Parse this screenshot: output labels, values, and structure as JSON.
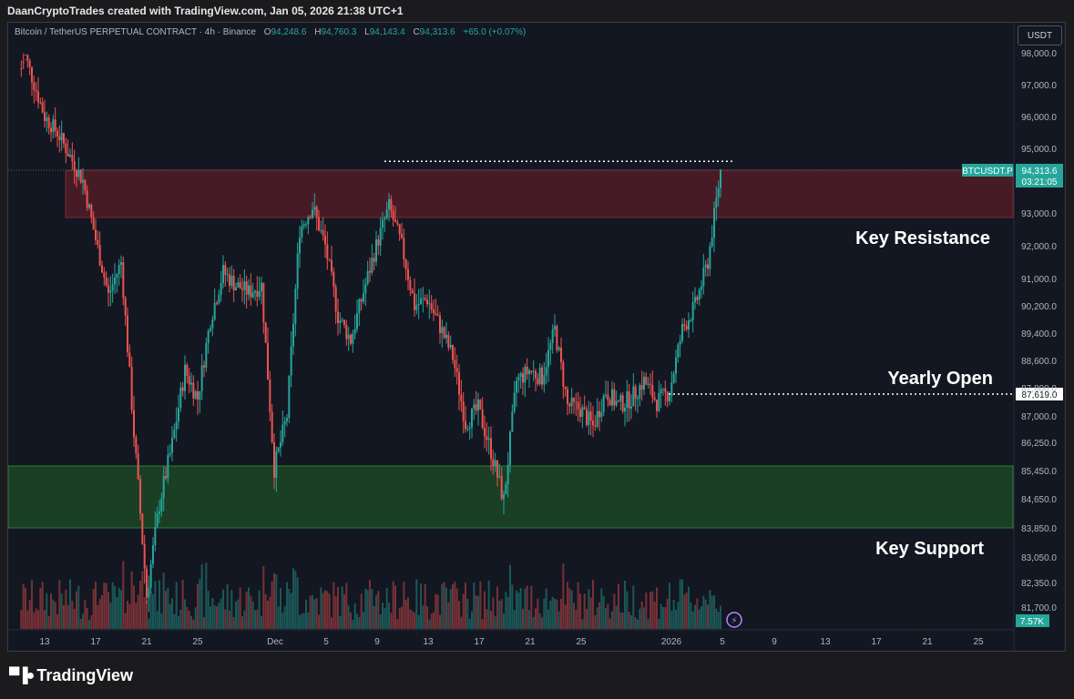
{
  "header": {
    "credit": "DaanCryptoTrades created with TradingView.com, Jan 05, 2026 21:38 UTC+1"
  },
  "legend": {
    "symbol": "Bitcoin / TetherUS PERPETUAL CONTRACT · 4h · Binance",
    "o_label": "O",
    "o": "94,248.6",
    "h_label": "H",
    "h": "94,760.3",
    "l_label": "L",
    "l": "94,143.4",
    "c_label": "C",
    "c": "94,313.6",
    "change": "+65.0 (+0.07%)"
  },
  "currency_button": "USDT",
  "brand": {
    "name": "TradingView"
  },
  "colors": {
    "up": "#26a69a",
    "down": "#ef5350",
    "background": "#131722",
    "resistance_zone": "#5a1d28",
    "support_zone": "#1d4a26",
    "price_tag": "#26a69a"
  },
  "chart_data": {
    "type": "candlestick",
    "title": "Bitcoin / TetherUS PERPETUAL CONTRACT · 4h · Binance",
    "x_ticks": [
      "13",
      "17",
      "21",
      "25",
      "Dec",
      "5",
      "9",
      "13",
      "17",
      "21",
      "25",
      "2026",
      "5",
      "9",
      "13",
      "17",
      "21",
      "25"
    ],
    "y_ticks": [
      "98,000.0",
      "97,000.0",
      "96,000.0",
      "95,000.0",
      "93,000.0",
      "92,000.0",
      "91,000.0",
      "90,200.0",
      "89,400.0",
      "88,600.0",
      "87,800.0",
      "87,000.0",
      "86,250.0",
      "85,450.0",
      "84,650.0",
      "83,850.0",
      "83,050.0",
      "82,350.0",
      "81,700.0"
    ],
    "y_scale": "nonlinear (price axis as printed)",
    "price_path": [
      {
        "x": "Nov 11",
        "y": 98500
      },
      {
        "x": "Nov 13",
        "y": 96000
      },
      {
        "x": "Nov 14",
        "y": 95500
      },
      {
        "x": "Nov 16",
        "y": 94000
      },
      {
        "x": "Nov 17",
        "y": 92200
      },
      {
        "x": "Nov 18",
        "y": 90500
      },
      {
        "x": "Nov 19",
        "y": 91500
      },
      {
        "x": "Nov 20",
        "y": 86500
      },
      {
        "x": "Nov 21",
        "y": 82000
      },
      {
        "x": "Nov 22",
        "y": 84500
      },
      {
        "x": "Nov 23",
        "y": 86200
      },
      {
        "x": "Nov 24",
        "y": 88300
      },
      {
        "x": "Nov 25",
        "y": 87500
      },
      {
        "x": "Nov 26",
        "y": 89800
      },
      {
        "x": "Nov 27",
        "y": 91200
      },
      {
        "x": "Nov 28",
        "y": 90800
      },
      {
        "x": "Nov 29",
        "y": 90600
      },
      {
        "x": "Nov 30",
        "y": 90800
      },
      {
        "x": "Dec 1",
        "y": 85500
      },
      {
        "x": "Dec 2",
        "y": 87000
      },
      {
        "x": "Dec 3",
        "y": 92500
      },
      {
        "x": "Dec 4",
        "y": 93200
      },
      {
        "x": "Dec 5",
        "y": 92000
      },
      {
        "x": "Dec 6",
        "y": 89900
      },
      {
        "x": "Dec 7",
        "y": 89200
      },
      {
        "x": "Dec 8",
        "y": 90600
      },
      {
        "x": "Dec 9",
        "y": 92000
      },
      {
        "x": "Dec 10",
        "y": 93200
      },
      {
        "x": "Dec 11",
        "y": 92000
      },
      {
        "x": "Dec 12",
        "y": 90200
      },
      {
        "x": "Dec 13",
        "y": 90400
      },
      {
        "x": "Dec 14",
        "y": 89600
      },
      {
        "x": "Dec 15",
        "y": 88700
      },
      {
        "x": "Dec 16",
        "y": 86800
      },
      {
        "x": "Dec 17",
        "y": 87200
      },
      {
        "x": "Dec 18",
        "y": 86000
      },
      {
        "x": "Dec 19",
        "y": 84600
      },
      {
        "x": "Dec 20",
        "y": 88000
      },
      {
        "x": "Dec 21",
        "y": 88300
      },
      {
        "x": "Dec 22",
        "y": 88100
      },
      {
        "x": "Dec 23",
        "y": 89500
      },
      {
        "x": "Dec 24",
        "y": 87300
      },
      {
        "x": "Dec 25",
        "y": 87200
      },
      {
        "x": "Dec 26",
        "y": 86700
      },
      {
        "x": "Dec 27",
        "y": 87700
      },
      {
        "x": "Dec 28",
        "y": 87300
      },
      {
        "x": "Dec 29",
        "y": 87500
      },
      {
        "x": "Dec 30",
        "y": 88000
      },
      {
        "x": "Dec 31",
        "y": 87400
      },
      {
        "x": "Jan 1",
        "y": 87700
      },
      {
        "x": "Jan 2",
        "y": 89500
      },
      {
        "x": "Jan 3",
        "y": 90200
      },
      {
        "x": "Jan 4",
        "y": 91500
      },
      {
        "x": "Jan 5",
        "y": 94300
      }
    ],
    "levels": [
      {
        "label": "Key Resistance",
        "from": 92900,
        "to": 94300
      },
      {
        "label": "Key Support",
        "from": 83850,
        "to": 85600
      }
    ],
    "yearly_open": {
      "label": "Yearly Open",
      "value": "87,619.0"
    },
    "local_high_line": 94600,
    "last_price": {
      "symbol": "BTCUSDT.P",
      "value": "94,313.6",
      "countdown": "03:21:05"
    },
    "volume_label": "7.57K"
  }
}
